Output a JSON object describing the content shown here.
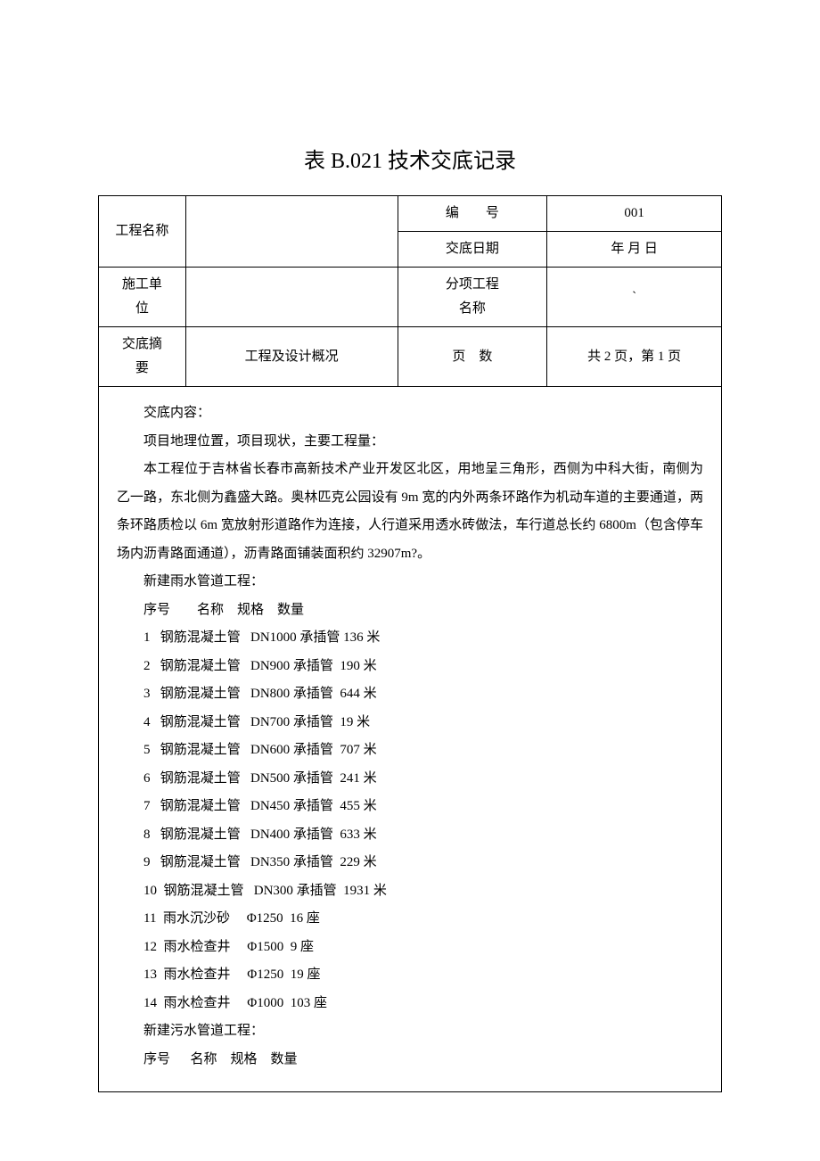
{
  "title": "表 B.021 技术交底记录",
  "header": {
    "project_name_label": "工程名称",
    "project_name_value": "",
    "code_label": "编　　号",
    "code_value": "001",
    "date_label": "交底日期",
    "date_value": "年  月  日",
    "construction_unit_label": "施工单\n位",
    "construction_unit_value": "",
    "subitem_label": "分项工程\n名称",
    "subitem_value": "`",
    "summary_label": "交底摘\n要",
    "summary_value": "工程及设计概况",
    "pages_label": "页　数",
    "pages_value": "共 2 页，第 1 页"
  },
  "body": {
    "heading": "交底内容：",
    "subheading": "项目地理位置，项目现状，主要工程量：",
    "paragraph": "本工程位于吉林省长春市高新技术产业开发区北区，用地呈三角形，西侧为中科大街，南侧为乙一路，东北侧为鑫盛大路。奥林匹克公园设有 9m 宽的内外两条环路作为机动车道的主要通道，两条环路质检以 6m 宽放射形道路作为连接，人行道采用透水砖做法，车行道总长约 6800m（包含停车场内沥青路面通道），沥青路面铺装面积约 32907m?。",
    "section1_title": "新建雨水管道工程：",
    "list_header": "序号        名称    规格    数量",
    "section1_items": [
      "1   钢筋混凝土管   DN1000 承插管 136 米",
      "2   钢筋混凝土管   DN900 承插管  190 米",
      "3   钢筋混凝土管   DN800 承插管  644 米",
      "4   钢筋混凝土管   DN700 承插管  19 米",
      "5   钢筋混凝土管   DN600 承插管  707 米",
      "6   钢筋混凝土管   DN500 承插管  241 米",
      "7   钢筋混凝土管   DN450 承插管  455 米",
      "8   钢筋混凝土管   DN400 承插管  633 米",
      "9   钢筋混凝土管   DN350 承插管  229 米",
      "10  钢筋混凝土管   DN300 承插管  1931 米",
      "11  雨水沉沙砂     Φ1250  16 座",
      "12  雨水检查井     Φ1500  9 座",
      "13  雨水检查井     Φ1250  19 座",
      "14  雨水检查井     Φ1000  103 座"
    ],
    "section2_title": "新建污水管道工程：",
    "list_header2": "序号      名称    规格    数量"
  },
  "style": {
    "page_bg": "#ffffff",
    "text_color": "#000000",
    "border_color": "#000000",
    "title_fontsize": 24,
    "body_fontsize": 15,
    "line_height": 2.1
  }
}
